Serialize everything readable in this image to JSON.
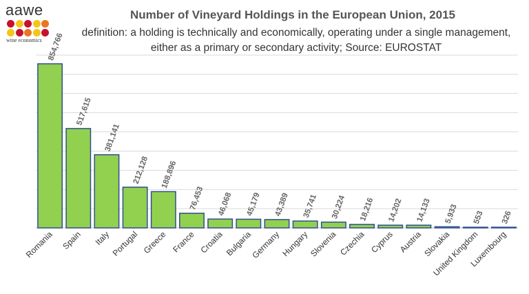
{
  "logo": {
    "word": "aawe",
    "tagline": "wine economics",
    "dot_colors": [
      "#c8102e",
      "#f5c518",
      "#c8102e",
      "#f5c518",
      "#e87722",
      "#f5c518",
      "#c8102e",
      "#e87722",
      "#f5c518",
      "#c8102e"
    ]
  },
  "chart_data": {
    "type": "bar",
    "title": "Number of Vineyard Holdings in the European Union, 2015",
    "subtitle": "definition: a holding is technically and economically, operating under a single management, either as a primary or secondary activity; Source: EUROSTAT",
    "categories": [
      "Romania",
      "Spain",
      "Italy",
      "Portugal",
      "Greece",
      "France",
      "Croatia",
      "Bulgaria",
      "Germany",
      "Hungary",
      "Slovenia",
      "Czechia",
      "Cyprus",
      "Austria",
      "Slovakia",
      "United Kingdom",
      "Luxembourg"
    ],
    "values": [
      854766,
      517615,
      381141,
      212128,
      188896,
      76453,
      46068,
      45179,
      43389,
      35741,
      30224,
      18216,
      14202,
      14133,
      5933,
      553,
      326
    ],
    "data_labels": [
      "854,766",
      "517,615",
      "381,141",
      "212,128",
      "188,896",
      "76,453",
      "46,068",
      "45,179",
      "43,389",
      "35,741",
      "30,224",
      "18,216",
      "14,202",
      "14,133",
      "5,933",
      "553",
      "326"
    ],
    "ylim": [
      0,
      900000
    ],
    "grid": true,
    "bar_color": "#92d050",
    "bar_edge_color": "#2f4f8f"
  }
}
